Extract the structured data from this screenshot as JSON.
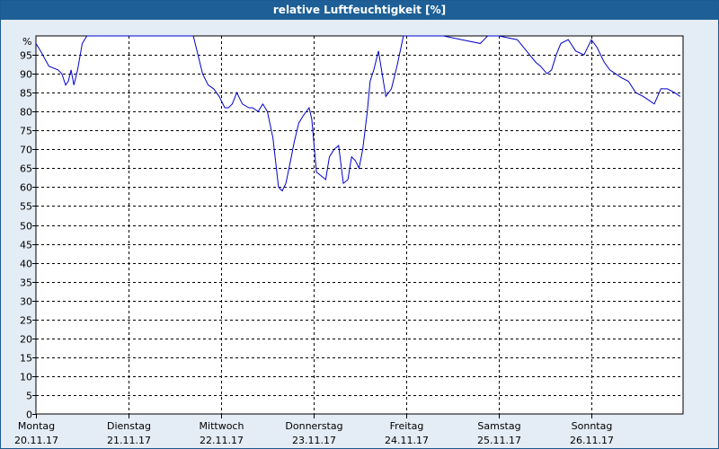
{
  "chart_data": {
    "type": "line",
    "title": "relative Luftfeuchtigkeit [%]",
    "y_unit": "%",
    "ylim": [
      0,
      100
    ],
    "y_ticks": [
      0,
      5,
      10,
      15,
      20,
      25,
      30,
      35,
      40,
      45,
      50,
      55,
      60,
      65,
      70,
      75,
      80,
      85,
      90,
      95
    ],
    "x_labels": [
      {
        "day": "Montag",
        "date": "20.11.17"
      },
      {
        "day": "Dienstag",
        "date": "21.11.17"
      },
      {
        "day": "Mittwoch",
        "date": "22.11.17"
      },
      {
        "day": "Donnerstag",
        "date": "23.11.17"
      },
      {
        "day": "Freitag",
        "date": "24.11.17"
      },
      {
        "day": "Samstag",
        "date": "25.11.17"
      },
      {
        "day": "Sonntag",
        "date": "26.11.17"
      }
    ],
    "grid": true,
    "line_color": "#0000cc",
    "series": [
      {
        "x_days": [
          0,
          0.05,
          0.14,
          0.24,
          0.28,
          0.32,
          0.35,
          0.38,
          0.41,
          0.45,
          0.5,
          0.55,
          0.61,
          0.7,
          0.8,
          1.0,
          1.5,
          1.7,
          1.8,
          1.86,
          1.92,
          1.98,
          2.04,
          2.08,
          2.12,
          2.17,
          2.23,
          2.3,
          2.34,
          2.4,
          2.45,
          2.5,
          2.56,
          2.62,
          2.66,
          2.7,
          2.75,
          2.79,
          2.84,
          2.89,
          2.95,
          2.98,
          3.03,
          3.08,
          3.13,
          3.17,
          3.22,
          3.27,
          3.32,
          3.37,
          3.41,
          3.45,
          3.49,
          3.53,
          3.58,
          3.61,
          3.65,
          3.7,
          3.78,
          3.84,
          3.9,
          3.97,
          4.02,
          4.08,
          4.16,
          4.25,
          4.4,
          4.6,
          4.8,
          4.84,
          4.88,
          4.92,
          5.0,
          5.2,
          5.3,
          5.4,
          5.45,
          5.52,
          5.57,
          5.62,
          5.67,
          5.75,
          5.83,
          5.92,
          6.0,
          6.06,
          6.14,
          6.2,
          6.26,
          6.32,
          6.4,
          6.48,
          6.56,
          6.62,
          6.68,
          6.75,
          6.82,
          6.9,
          6.96
        ],
        "values": [
          98,
          96,
          92,
          91,
          90,
          87,
          88,
          91,
          87,
          91,
          98,
          100,
          100,
          100,
          100,
          100,
          100,
          100,
          90,
          87,
          86,
          84,
          81,
          81,
          82,
          85,
          82,
          81,
          81,
          80,
          82,
          80,
          73,
          60,
          59,
          61,
          67,
          72,
          77,
          79,
          81,
          78,
          64,
          63,
          62,
          68,
          70,
          71,
          61,
          62,
          68,
          67,
          65,
          70,
          80,
          88,
          91,
          96,
          84,
          86,
          92,
          100,
          100,
          100,
          100,
          100,
          100,
          99,
          98,
          99,
          100,
          100,
          100,
          99,
          96,
          93,
          92,
          90,
          91,
          95,
          98,
          99,
          96,
          95,
          99,
          97,
          93,
          91,
          90,
          89,
          88,
          85,
          84,
          83,
          82,
          86,
          86,
          85,
          84
        ]
      }
    ]
  }
}
